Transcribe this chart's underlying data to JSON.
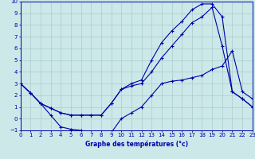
{
  "xlabel": "Graphe des températures (°c)",
  "bg_color": "#cce8e8",
  "grid_color": "#aacccc",
  "line_color": "#0000aa",
  "xmin": 0,
  "xmax": 23,
  "ymin": -1,
  "ymax": 10,
  "curve1_x": [
    0,
    1,
    2,
    3,
    4,
    5,
    6,
    7,
    8,
    9,
    10,
    11,
    12,
    13,
    14,
    15,
    16,
    17,
    18,
    19,
    20,
    21,
    22,
    23
  ],
  "curve1_y": [
    3.0,
    2.2,
    1.3,
    0.3,
    -0.7,
    -0.9,
    -1.0,
    -1.2,
    -1.2,
    -1.2,
    0.0,
    0.5,
    1.0,
    2.0,
    3.0,
    3.2,
    3.3,
    3.5,
    3.7,
    4.2,
    4.5,
    5.8,
    2.3,
    1.7
  ],
  "curve2_x": [
    0,
    1,
    2,
    3,
    4,
    5,
    6,
    7,
    8,
    9,
    10,
    11,
    12,
    13,
    14,
    15,
    16,
    17,
    18,
    19,
    20,
    21,
    22,
    23
  ],
  "curve2_y": [
    3.0,
    2.2,
    1.3,
    0.9,
    0.5,
    0.3,
    0.3,
    0.3,
    0.3,
    1.3,
    2.5,
    3.0,
    3.3,
    5.0,
    6.5,
    7.5,
    8.3,
    9.3,
    9.8,
    9.8,
    8.7,
    2.3,
    1.7,
    1.0
  ],
  "curve3_x": [
    0,
    1,
    2,
    3,
    4,
    5,
    6,
    7,
    8,
    9,
    10,
    11,
    12,
    13,
    14,
    15,
    16,
    17,
    18,
    19,
    20,
    21,
    22,
    23
  ],
  "curve3_y": [
    3.0,
    2.2,
    1.3,
    0.9,
    0.5,
    0.3,
    0.3,
    0.3,
    0.3,
    1.3,
    2.5,
    2.8,
    3.0,
    4.0,
    5.2,
    6.2,
    7.2,
    8.2,
    8.7,
    9.5,
    6.2,
    2.3,
    1.7,
    1.0
  ]
}
